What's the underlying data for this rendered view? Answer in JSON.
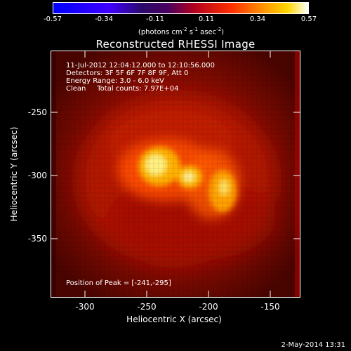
{
  "colorbar": {
    "ticks": [
      "-0.57",
      "-0.34",
      "-0.11",
      "0.11",
      "0.34",
      "0.57"
    ],
    "units_text": "(photons cm",
    "units_exp1": "-2",
    "units_mid": " s",
    "units_exp2": "-1",
    "units_mid2": " asec",
    "units_exp3": "-2",
    "units_close": ")"
  },
  "title": "Reconstructed RHESSI Image",
  "annotations": {
    "line1": "11-Jul-2012 12:04:12.000 to 12:10:56.000",
    "line2": "Detectors: 3F 5F 6F 7F 8F 9F, Att 0",
    "line3": "Energy Range: 3.0 - 6.0 keV",
    "line4": "Clean     Total counts: 7.97E+04",
    "peak": "Position of Peak = [-241,-295]"
  },
  "axes": {
    "xlabel": "Heliocentric X (arcsec)",
    "ylabel": "Heliocentric Y (arcsec)",
    "xticks": [
      "-300",
      "-250",
      "-200",
      "-150"
    ],
    "yticks": [
      "-250",
      "-300",
      "-350"
    ]
  },
  "footer": {
    "date": "2-May-2014 13:31"
  },
  "colors": {
    "background": "#000000",
    "text": "#ffffff"
  }
}
